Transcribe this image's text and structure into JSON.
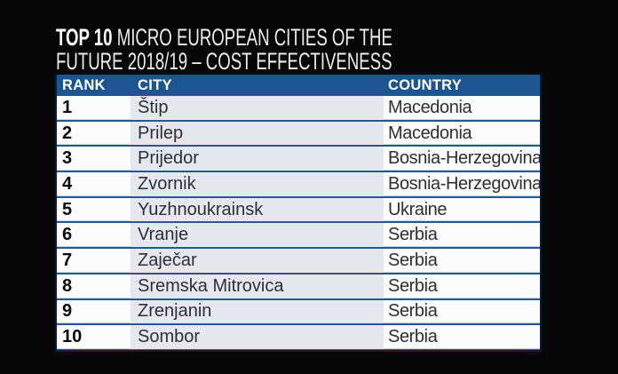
{
  "title": {
    "highlight": "TOP 10",
    "line1_rest": " MICRO EUROPEAN CITIES OF THE",
    "line2": "FUTURE 2018/19 – COST EFFECTIVENESS"
  },
  "table": {
    "columns": [
      "RANK",
      "CITY",
      "COUNTRY"
    ],
    "rows": [
      {
        "rank": "1",
        "city": "Štip",
        "country": "Macedonia"
      },
      {
        "rank": "2",
        "city": "Prilep",
        "country": "Macedonia"
      },
      {
        "rank": "3",
        "city": "Prijedor",
        "country": "Bosnia-Herzegovina"
      },
      {
        "rank": "4",
        "city": "Zvornik",
        "country": "Bosnia-Herzegovina"
      },
      {
        "rank": "5",
        "city": "Yuzhnoukrainsk",
        "country": "Ukraine"
      },
      {
        "rank": "6",
        "city": "Vranje",
        "country": "Serbia"
      },
      {
        "rank": "7",
        "city": "Zaječar",
        "country": "Serbia"
      },
      {
        "rank": "8",
        "city": "Sremska Mitrovica",
        "country": "Serbia"
      },
      {
        "rank": "9",
        "city": "Zrenjanin",
        "country": "Serbia"
      },
      {
        "rank": "10",
        "city": "Sombor",
        "country": "Serbia"
      }
    ]
  },
  "colors": {
    "background": "#070707",
    "header_blue": "#1c5591",
    "divider_blue": "#235892",
    "city_column_bg": "#e7e8ef",
    "row_bg": "#fcfcfd",
    "title_text": "#ededed",
    "body_text": "#2e2e34"
  },
  "chart_data": {
    "type": "table",
    "title": "TOP 10 MICRO EUROPEAN CITIES OF THE FUTURE 2018/19 – COST EFFECTIVENESS",
    "columns": [
      "RANK",
      "CITY",
      "COUNTRY"
    ],
    "rows": [
      [
        1,
        "Štip",
        "Macedonia"
      ],
      [
        2,
        "Prilep",
        "Macedonia"
      ],
      [
        3,
        "Prijedor",
        "Bosnia-Herzegovina"
      ],
      [
        4,
        "Zvornik",
        "Bosnia-Herzegovina"
      ],
      [
        5,
        "Yuzhnoukrainsk",
        "Ukraine"
      ],
      [
        6,
        "Vranje",
        "Serbia"
      ],
      [
        7,
        "Zaječar",
        "Serbia"
      ],
      [
        8,
        "Sremska Mitrovica",
        "Serbia"
      ],
      [
        9,
        "Zrenjanin",
        "Serbia"
      ],
      [
        10,
        "Sombor",
        "Serbia"
      ]
    ]
  }
}
